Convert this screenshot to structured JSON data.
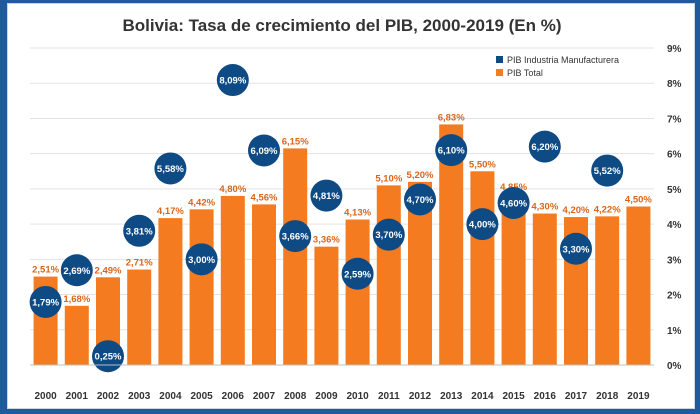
{
  "chart_data": {
    "type": "bar",
    "title": "Bolivia: Tasa de crecimiento del PIB, 2000-2019 (En %)",
    "xlabel": "",
    "ylabel": "",
    "ylim": [
      0,
      9
    ],
    "y_ticks": [
      "0%",
      "1%",
      "2%",
      "3%",
      "4%",
      "5%",
      "6%",
      "7%",
      "8%",
      "9%"
    ],
    "categories": [
      "2000",
      "2001",
      "2002",
      "2003",
      "2004",
      "2005",
      "2006",
      "2007",
      "2008",
      "2009",
      "2010",
      "2011",
      "2012",
      "2013",
      "2014",
      "2015",
      "2016",
      "2017",
      "2018",
      "2019"
    ],
    "series": [
      {
        "name": "PIB Total",
        "mark": "bar",
        "values": [
          2.51,
          1.68,
          2.49,
          2.71,
          4.17,
          4.42,
          4.8,
          4.56,
          6.15,
          3.36,
          4.13,
          5.1,
          5.2,
          6.83,
          5.5,
          4.85,
          4.3,
          4.2,
          4.22,
          4.5
        ],
        "labels": [
          "2,51%",
          "1,68%",
          "2,49%",
          "2,71%",
          "4,17%",
          "4,42%",
          "4,80%",
          "4,56%",
          "6,15%",
          "3,36%",
          "4,13%",
          "5,10%",
          "5,20%",
          "6,83%",
          "5,50%",
          "4,85%",
          "4,30%",
          "4,20%",
          "4,22%",
          "4,50%"
        ]
      },
      {
        "name": "PIB Industria Manufacturera",
        "mark": "circle",
        "values": [
          1.79,
          2.69,
          0.25,
          3.81,
          5.58,
          3.0,
          8.09,
          6.09,
          3.66,
          4.81,
          2.59,
          3.7,
          4.7,
          6.1,
          4.0,
          4.6,
          6.2,
          3.3,
          5.52,
          null
        ],
        "labels": [
          "1,79%",
          "2,69%",
          "0,25%",
          "3,81%",
          "5,58%",
          "3,00%",
          "8,09%",
          "6,09%",
          "3,66%",
          "4,81%",
          "2,59%",
          "3,70%",
          "4,70%",
          "6,10%",
          "4,00%",
          "4,60%",
          "6,20%",
          "3,30%",
          "5,52%",
          ""
        ]
      }
    ],
    "legend": {
      "position": "top-right",
      "entries": [
        {
          "label": "PIB Industria Manufacturera",
          "color": "#0e4a84"
        },
        {
          "label": "PIB Total",
          "color": "#f47b20"
        }
      ]
    },
    "colors": {
      "bar": "#f47b20",
      "bar_label": "#d9651a",
      "circle": "#0e4a84",
      "circle_text": "#ffffff",
      "grid": "#e3e3e3",
      "axis_text": "#333333"
    }
  }
}
